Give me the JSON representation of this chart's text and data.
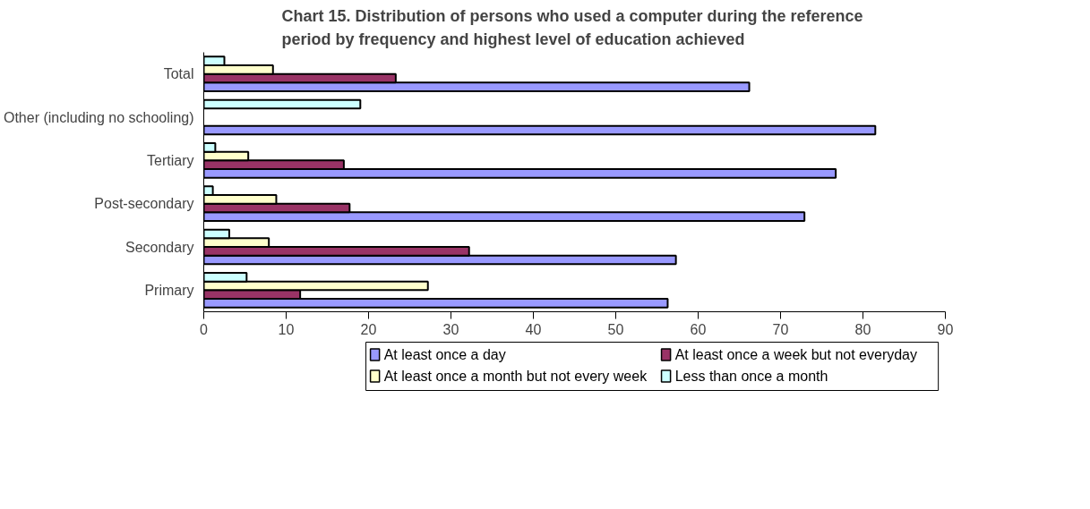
{
  "chart_data": {
    "type": "bar",
    "orientation": "horizontal",
    "title": "Chart 15.  Distribution of persons who used a computer during the reference\nperiod by frequency and highest level of education achieved",
    "categories": [
      "Total",
      "Other (including no schooling)",
      "Tertiary",
      "Post-secondary",
      "Secondary",
      "Primary"
    ],
    "series": [
      {
        "name": "At least once a day",
        "color": "#9999ff",
        "values": [
          66.2,
          81.5,
          76.7,
          72.9,
          57.3,
          56.3
        ]
      },
      {
        "name": "At least once a week but not everyday",
        "color": "#993366",
        "values": [
          23.3,
          null,
          17.0,
          17.7,
          32.2,
          11.7
        ]
      },
      {
        "name": "At least once a month but not every week",
        "color": "#ffffcc",
        "values": [
          8.4,
          null,
          5.4,
          8.8,
          7.9,
          27.2
        ]
      },
      {
        "name": "Less than once a month",
        "color": "#ccffff",
        "values": [
          2.5,
          19.0,
          1.4,
          1.1,
          3.1,
          5.2
        ]
      }
    ],
    "xlim": [
      0,
      90
    ],
    "xticks": [
      0,
      10,
      20,
      30,
      40,
      50,
      60,
      70,
      80,
      90
    ],
    "grid": false,
    "legend": "bottom"
  }
}
